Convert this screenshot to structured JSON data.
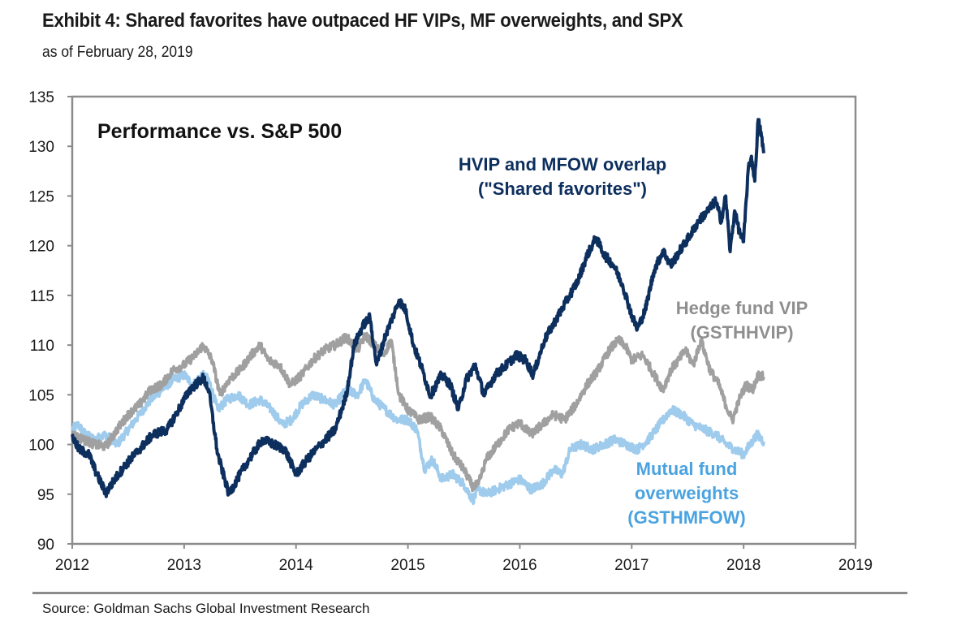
{
  "header": {
    "title": "Exhibit 4: Shared favorites have outpaced HF VIPs, MF overweights, and SPX",
    "subtitle": "as of February 28, 2019"
  },
  "footer": {
    "source": "Source: Goldman Sachs Global Investment Research"
  },
  "chart_data": {
    "type": "line",
    "title": "Performance vs. S&P 500",
    "xlabel": "",
    "ylabel": "",
    "xlim": [
      2012,
      2019
    ],
    "ylim": [
      90,
      135
    ],
    "x_ticks": [
      "2012",
      "2013",
      "2014",
      "2015",
      "2016",
      "2017",
      "2018",
      "2019"
    ],
    "y_ticks": [
      "90",
      "95",
      "100",
      "105",
      "110",
      "115",
      "120",
      "125",
      "130",
      "135"
    ],
    "grid": false,
    "legend": "inline-annotations",
    "series": [
      {
        "name": "HVIP and MFOW overlap (\"Shared favorites\")",
        "label_lines": [
          "HVIP and MFOW overlap",
          "(\"Shared favorites\")"
        ],
        "color": "#0d2f5e",
        "x": [
          2012.0,
          2012.06,
          2012.15,
          2012.22,
          2012.3,
          2012.38,
          2012.48,
          2012.6,
          2012.72,
          2012.85,
          2012.95,
          2013.05,
          2013.17,
          2013.22,
          2013.3,
          2013.4,
          2013.5,
          2013.58,
          2013.7,
          2013.8,
          2013.9,
          2014.0,
          2014.1,
          2014.22,
          2014.35,
          2014.45,
          2014.52,
          2014.6,
          2014.66,
          2014.72,
          2014.8,
          2014.87,
          2014.92,
          2014.98,
          2015.05,
          2015.13,
          2015.2,
          2015.3,
          2015.38,
          2015.45,
          2015.52,
          2015.6,
          2015.68,
          2015.78,
          2015.88,
          2015.97,
          2016.05,
          2016.12,
          2016.22,
          2016.32,
          2016.42,
          2016.52,
          2016.6,
          2016.68,
          2016.76,
          2016.84,
          2016.92,
          2017.0,
          2017.05,
          2017.12,
          2017.2,
          2017.28,
          2017.35,
          2017.43,
          2017.52,
          2017.6,
          2017.68,
          2017.75,
          2017.8,
          2017.84,
          2017.88,
          2017.92,
          2017.96,
          2018.0,
          2018.04,
          2018.07,
          2018.1,
          2018.13,
          2018.16,
          2018.18
        ],
        "values": [
          100.8,
          99.5,
          99.0,
          97.0,
          95.1,
          96.5,
          98.0,
          99.5,
          101.0,
          101.5,
          103.5,
          105.5,
          106.7,
          105.5,
          99.0,
          95.0,
          97.0,
          98.5,
          100.5,
          100.0,
          99.5,
          97.0,
          98.5,
          100.0,
          101.5,
          105.0,
          110.0,
          112.0,
          112.8,
          108.0,
          111.0,
          113.0,
          114.5,
          113.5,
          110.0,
          107.5,
          104.9,
          107.0,
          106.0,
          103.5,
          106.5,
          108.0,
          105.0,
          107.0,
          108.0,
          109.0,
          108.5,
          107.0,
          110.5,
          112.5,
          114.5,
          116.5,
          119.0,
          120.8,
          119.0,
          118.0,
          116.0,
          113.0,
          111.6,
          113.5,
          117.5,
          119.5,
          118.0,
          119.5,
          121.0,
          122.5,
          123.5,
          124.5,
          122.5,
          125.0,
          119.4,
          123.5,
          121.5,
          120.4,
          127.5,
          129.0,
          126.5,
          132.7,
          131.0,
          129.3
        ]
      },
      {
        "name": "Hedge fund VIP (GSTHHVIP)",
        "label_lines": [
          "Hedge fund VIP",
          "(GSTHHVIP)"
        ],
        "color": "#a0a0a0",
        "x": [
          2012.0,
          2012.1,
          2012.2,
          2012.3,
          2012.4,
          2012.5,
          2012.6,
          2012.7,
          2012.8,
          2012.9,
          2013.0,
          2013.1,
          2013.17,
          2013.25,
          2013.32,
          2013.4,
          2013.5,
          2013.6,
          2013.68,
          2013.75,
          2013.85,
          2013.95,
          2014.05,
          2014.15,
          2014.25,
          2014.35,
          2014.45,
          2014.55,
          2014.62,
          2014.7,
          2014.78,
          2014.85,
          2014.92,
          2015.0,
          2015.1,
          2015.2,
          2015.3,
          2015.4,
          2015.5,
          2015.58,
          2015.63,
          2015.7,
          2015.8,
          2015.9,
          2016.0,
          2016.1,
          2016.2,
          2016.3,
          2016.4,
          2016.5,
          2016.6,
          2016.7,
          2016.8,
          2016.88,
          2016.94,
          2017.0,
          2017.1,
          2017.2,
          2017.28,
          2017.35,
          2017.42,
          2017.48,
          2017.55,
          2017.62,
          2017.7,
          2017.78,
          2017.84,
          2017.9,
          2017.96,
          2018.02,
          2018.08,
          2018.13,
          2018.18
        ],
        "values": [
          101.0,
          100.5,
          100.0,
          99.8,
          101.5,
          103.0,
          104.0,
          105.5,
          106.0,
          107.5,
          108.0,
          109.0,
          110.0,
          108.5,
          105.0,
          106.5,
          107.5,
          109.0,
          110.0,
          108.5,
          108.0,
          106.0,
          107.0,
          108.5,
          109.5,
          110.0,
          110.8,
          109.5,
          111.0,
          110.0,
          109.0,
          110.5,
          105.0,
          103.5,
          102.5,
          102.8,
          101.5,
          99.0,
          97.5,
          95.7,
          96.0,
          98.5,
          100.0,
          101.5,
          102.2,
          101.0,
          102.0,
          103.0,
          102.5,
          104.0,
          106.0,
          107.5,
          109.5,
          110.5,
          110.0,
          108.5,
          109.0,
          107.0,
          105.5,
          107.5,
          108.5,
          109.5,
          108.0,
          110.5,
          107.5,
          106.0,
          104.0,
          102.4,
          104.5,
          106.0,
          105.5,
          107.0,
          106.8
        ]
      },
      {
        "name": "Mutual fund overweights (GSTHMFOW)",
        "label_lines": [
          "Mutual fund",
          "overweights",
          "(GSTHMFOW)"
        ],
        "color": "#9fcbec",
        "x": [
          2012.0,
          2012.05,
          2012.12,
          2012.2,
          2012.3,
          2012.4,
          2012.5,
          2012.6,
          2012.7,
          2012.8,
          2012.9,
          2013.0,
          2013.08,
          2013.16,
          2013.22,
          2013.3,
          2013.38,
          2013.48,
          2013.58,
          2013.68,
          2013.78,
          2013.88,
          2013.96,
          2014.05,
          2014.15,
          2014.25,
          2014.35,
          2014.45,
          2014.55,
          2014.62,
          2014.7,
          2014.8,
          2014.9,
          2015.0,
          2015.08,
          2015.15,
          2015.22,
          2015.3,
          2015.4,
          2015.5,
          2015.58,
          2015.63,
          2015.7,
          2015.8,
          2015.9,
          2016.0,
          2016.1,
          2016.2,
          2016.3,
          2016.38,
          2016.45,
          2016.55,
          2016.65,
          2016.75,
          2016.85,
          2016.95,
          2017.05,
          2017.15,
          2017.25,
          2017.35,
          2017.45,
          2017.55,
          2017.65,
          2017.75,
          2017.85,
          2017.92,
          2018.0,
          2018.06,
          2018.12,
          2018.18
        ],
        "values": [
          101.5,
          102.0,
          101.0,
          100.5,
          101.0,
          100.0,
          101.5,
          103.0,
          104.5,
          105.5,
          106.5,
          107.0,
          106.0,
          107.0,
          106.5,
          103.5,
          104.5,
          105.0,
          104.0,
          104.5,
          103.5,
          102.0,
          102.5,
          104.0,
          105.0,
          104.5,
          104.0,
          105.5,
          105.0,
          106.5,
          104.5,
          103.5,
          102.5,
          102.5,
          101.5,
          97.5,
          98.5,
          96.5,
          97.0,
          96.0,
          94.4,
          95.5,
          95.0,
          95.5,
          96.0,
          96.5,
          95.5,
          96.0,
          97.5,
          97.0,
          99.5,
          100.0,
          99.5,
          100.0,
          100.5,
          100.0,
          99.5,
          100.5,
          102.0,
          103.5,
          103.0,
          102.0,
          101.5,
          101.0,
          100.0,
          99.5,
          99.0,
          100.0,
          101.0,
          100.3
        ]
      }
    ]
  }
}
